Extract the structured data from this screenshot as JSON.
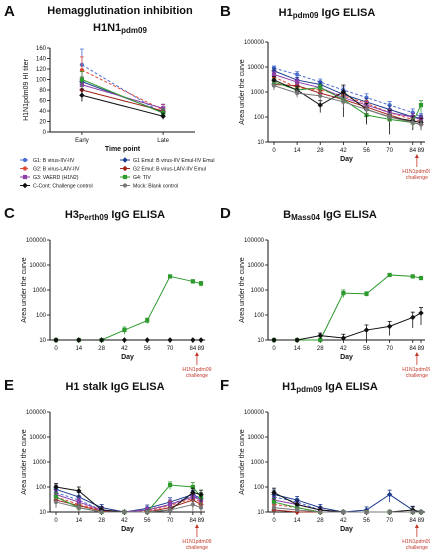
{
  "figure": {
    "panel_letters": [
      "A",
      "B",
      "C",
      "D",
      "E",
      "F"
    ],
    "annotation_line1": "H1N1pdm09",
    "annotation_line2": "challenge"
  },
  "legend": [
    {
      "label": "G1: B virus-IIV-IIV",
      "color": "#4a6fd0",
      "marker": "circle",
      "dash": "3,2"
    },
    {
      "label": "G1 Emul: B virus-IIV Emul-IIV Emul",
      "color": "#1d3c8f",
      "marker": "diamond",
      "dash": ""
    },
    {
      "label": "G2: B virus-LAIV-IIV",
      "color": "#e04a3a",
      "marker": "circle",
      "dash": "3,2"
    },
    {
      "label": "G2 Emul: B virus-LAIV-IIV Emul",
      "color": "#a3231b",
      "marker": "diamond",
      "dash": ""
    },
    {
      "label": "G3: VAERD (H1N2)",
      "color": "#8e3fa8",
      "marker": "square",
      "dash": ""
    },
    {
      "label": "G4: TIV",
      "color": "#2e9a2e",
      "marker": "square",
      "dash": ""
    },
    {
      "label": "C-Cont: Challenge control",
      "color": "#111111",
      "marker": "diamond",
      "dash": ""
    },
    {
      "label": "Mock: Blank control",
      "color": "#777777",
      "marker": "circle",
      "dash": ""
    }
  ],
  "chart_data": [
    {
      "type": "line",
      "title": "Hemagglutination inhibition",
      "subtitle": "H1N1pdm09",
      "xlabel": "Time point",
      "ylabel": "H1N1pdm09 HI titer",
      "categories": [
        "Early",
        "Late"
      ],
      "ylim": [
        0,
        160
      ],
      "yticks": [
        0,
        20,
        40,
        60,
        80,
        100,
        120,
        140,
        160
      ],
      "series": [
        {
          "name": "G1: B virus-IIV-IIV",
          "values": [
            128,
            35
          ],
          "err": [
            30,
            10
          ]
        },
        {
          "name": "G1 Emul: B virus-IIV Emul-IIV Emul",
          "values": [
            96,
            38
          ],
          "err": [
            20,
            8
          ]
        },
        {
          "name": "G2: B virus-LAIV-IIV",
          "values": [
            118,
            42
          ],
          "err": [
            25,
            10
          ]
        },
        {
          "name": "G2 Emul: B virus-LAIV-IIV Emul",
          "values": [
            80,
            40
          ],
          "err": [
            20,
            8
          ]
        },
        {
          "name": "G3: VAERD (H1N2)",
          "values": [
            90,
            45
          ],
          "err": [
            15,
            8
          ]
        },
        {
          "name": "G4: TIV",
          "values": [
            100,
            36
          ],
          "err": [
            15,
            8
          ]
        },
        {
          "name": "C-Cont: Challenge control",
          "values": [
            70,
            30
          ],
          "err": [
            12,
            6
          ]
        }
      ]
    },
    {
      "type": "line",
      "title": "H1",
      "title_sub": "pdm09",
      "title_rest": " IgG ELISA",
      "xlabel": "Day",
      "ylabel": "Area under the curve",
      "x": [
        0,
        14,
        28,
        42,
        56,
        70,
        84,
        89
      ],
      "xticks": [
        0,
        14,
        28,
        42,
        56,
        70,
        84,
        89
      ],
      "ylim": [
        10,
        100000
      ],
      "yscale": "log",
      "yticks": [
        10,
        100,
        1000,
        10000,
        100000
      ],
      "series": [
        {
          "name": "G1: B virus-IIV-IIV",
          "values": [
            9000,
            5000,
            2500,
            1200,
            600,
            300,
            150,
            100
          ],
          "err": [
            2000,
            1500,
            800,
            400,
            250,
            120,
            60,
            40
          ]
        },
        {
          "name": "G1 Emul: B virus-IIV Emul-IIV Emul",
          "values": [
            7000,
            3000,
            2000,
            800,
            400,
            200,
            100,
            90
          ],
          "err": [
            2000,
            800,
            600,
            300,
            150,
            80,
            40,
            30
          ]
        },
        {
          "name": "G2: B virus-LAIV-IIV",
          "values": [
            4000,
            1500,
            1200,
            700,
            350,
            150,
            80,
            70
          ],
          "err": [
            1500,
            500,
            400,
            250,
            120,
            60,
            30,
            25
          ]
        },
        {
          "name": "G2 Emul: B virus-LAIV-IIV Emul",
          "values": [
            2000,
            1800,
            900,
            500,
            250,
            120,
            60,
            50
          ],
          "err": [
            800,
            600,
            300,
            200,
            100,
            50,
            25,
            20
          ]
        },
        {
          "name": "G3: VAERD (H1N2)",
          "values": [
            5000,
            2500,
            1500,
            600,
            300,
            150,
            100,
            80
          ],
          "err": [
            1500,
            800,
            500,
            250,
            120,
            60,
            40,
            30
          ]
        },
        {
          "name": "G4: TIV",
          "values": [
            2500,
            1200,
            1500,
            500,
            120,
            80,
            60,
            300
          ],
          "err": [
            900,
            400,
            500,
            200,
            60,
            40,
            30,
            150
          ]
        },
        {
          "name": "C-Cont: Challenge control",
          "values": [
            3000,
            1200,
            300,
            1000,
            200,
            100,
            70,
            60
          ],
          "err": [
            1200,
            500,
            150,
            900,
            150,
            80,
            40,
            30
          ]
        },
        {
          "name": "Mock: Blank control",
          "values": [
            1800,
            900,
            700,
            400,
            200,
            100,
            60,
            50
          ],
          "err": [
            600,
            300,
            250,
            150,
            80,
            40,
            25,
            20
          ]
        }
      ]
    },
    {
      "type": "line",
      "title": "H3",
      "title_sub": "Perth09",
      "title_rest": " IgG ELISA",
      "xlabel": "Day",
      "ylabel": "Area under the curve",
      "x": [
        0,
        14,
        28,
        42,
        56,
        70,
        84,
        89
      ],
      "xticks": [
        0,
        14,
        28,
        42,
        56,
        70,
        84,
        89
      ],
      "ylim": [
        10,
        100000
      ],
      "yscale": "log",
      "yticks": [
        10,
        100,
        1000,
        10000,
        100000
      ],
      "series": [
        {
          "name": "G4: TIV",
          "values": [
            10,
            10,
            10,
            25,
            60,
            3500,
            2200,
            1800
          ],
          "err": [
            0,
            0,
            0,
            8,
            15,
            500,
            400,
            400
          ]
        },
        {
          "name": "C-Cont: Challenge control",
          "values": [
            10,
            10,
            10,
            10,
            10,
            10,
            10,
            10
          ],
          "err": [
            0,
            0,
            0,
            0,
            0,
            0,
            0,
            0
          ]
        }
      ]
    },
    {
      "type": "line",
      "title": "B",
      "title_sub": "Mass04",
      "title_rest": " IgG ELISA",
      "xlabel": "Day",
      "ylabel": "Area under the curve",
      "x": [
        0,
        14,
        28,
        42,
        56,
        70,
        84,
        89
      ],
      "xticks": [
        0,
        14,
        28,
        42,
        56,
        70,
        84,
        89
      ],
      "ylim": [
        10,
        100000
      ],
      "yscale": "log",
      "yticks": [
        10,
        100,
        1000,
        10000,
        100000
      ],
      "series": [
        {
          "name": "G4: TIV",
          "values": [
            10,
            10,
            10,
            750,
            700,
            4000,
            3500,
            3000
          ],
          "err": [
            0,
            0,
            0,
            250,
            150,
            600,
            500,
            400
          ]
        },
        {
          "name": "C-Cont: Challenge control",
          "values": [
            10,
            10,
            15,
            12,
            25,
            35,
            80,
            120
          ],
          "err": [
            0,
            0,
            4,
            5,
            15,
            20,
            50,
            80
          ]
        }
      ]
    },
    {
      "type": "line",
      "title": "H1 stalk IgG ELISA",
      "xlabel": "Day",
      "ylabel": "Area under the curve",
      "x": [
        0,
        14,
        28,
        42,
        56,
        70,
        84,
        89
      ],
      "xticks": [
        0,
        14,
        28,
        42,
        56,
        70,
        84,
        89
      ],
      "ylim": [
        10,
        100000
      ],
      "yscale": "log",
      "yticks": [
        10,
        100,
        1000,
        10000,
        100000
      ],
      "series": [
        {
          "name": "G1: B virus-IIV-IIV",
          "values": [
            60,
            30,
            12,
            10,
            12,
            20,
            45,
            30
          ],
          "err": [
            30,
            15,
            4,
            0,
            4,
            10,
            25,
            15
          ]
        },
        {
          "name": "G1 Emul: B virus-IIV Emul-IIV Emul",
          "values": [
            80,
            40,
            15,
            10,
            14,
            25,
            50,
            35
          ],
          "err": [
            40,
            20,
            5,
            0,
            5,
            12,
            25,
            18
          ]
        },
        {
          "name": "G2: B virus-LAIV-IIV",
          "values": [
            40,
            20,
            12,
            10,
            11,
            18,
            35,
            25
          ],
          "err": [
            20,
            10,
            4,
            0,
            3,
            8,
            20,
            12
          ]
        },
        {
          "name": "G2 Emul: B virus-LAIV-IIV Emul",
          "values": [
            30,
            18,
            11,
            10,
            10,
            15,
            30,
            20
          ],
          "err": [
            15,
            8,
            3,
            0,
            0,
            6,
            15,
            10
          ]
        },
        {
          "name": "G3: VAERD (H1N2)",
          "values": [
            50,
            25,
            12,
            10,
            12,
            20,
            40,
            30
          ],
          "err": [
            25,
            12,
            4,
            0,
            4,
            10,
            20,
            15
          ]
        },
        {
          "name": "G4: TIV",
          "values": [
            40,
            15,
            10,
            10,
            10,
            120,
            100,
            40
          ],
          "err": [
            20,
            6,
            0,
            0,
            0,
            40,
            50,
            20
          ]
        },
        {
          "name": "C-Cont: Challenge control",
          "values": [
            100,
            70,
            12,
            10,
            10,
            12,
            60,
            50
          ],
          "err": [
            40,
            30,
            4,
            0,
            0,
            4,
            30,
            25
          ]
        },
        {
          "name": "Mock: Blank control",
          "values": [
            25,
            15,
            10,
            10,
            10,
            12,
            20,
            15
          ],
          "err": [
            10,
            6,
            0,
            0,
            0,
            4,
            10,
            6
          ]
        }
      ]
    },
    {
      "type": "line",
      "title": "H1",
      "title_sub": "pdm09",
      "title_rest": " IgA ELISA",
      "xlabel": "Day",
      "ylabel": "Area under the curve",
      "x": [
        0,
        14,
        28,
        42,
        56,
        70,
        84,
        89
      ],
      "xticks": [
        0,
        14,
        28,
        42,
        56,
        70,
        84,
        89
      ],
      "ylim": [
        10,
        100000
      ],
      "yscale": "log",
      "yticks": [
        10,
        100,
        1000,
        10000,
        100000
      ],
      "series": [
        {
          "name": "G1: B virus-IIV-IIV",
          "values": [
            40,
            25,
            12,
            10,
            10,
            10,
            10,
            10
          ],
          "err": [
            20,
            10,
            4,
            0,
            0,
            0,
            0,
            0
          ]
        },
        {
          "name": "G1 Emul: B virus-IIV Emul-IIV Emul",
          "values": [
            50,
            30,
            15,
            10,
            12,
            50,
            12,
            10
          ],
          "err": [
            25,
            12,
            5,
            0,
            4,
            25,
            5,
            0
          ]
        },
        {
          "name": "G2: B virus-LAIV-IIV",
          "values": [
            20,
            15,
            10,
            10,
            10,
            10,
            10,
            10
          ],
          "err": [
            8,
            6,
            0,
            0,
            0,
            0,
            0,
            0
          ]
        },
        {
          "name": "G2 Emul: B virus-LAIV-IIV Emul",
          "values": [
            12,
            10,
            10,
            10,
            10,
            10,
            10,
            10
          ],
          "err": [
            4,
            0,
            0,
            0,
            0,
            0,
            0,
            0
          ]
        },
        {
          "name": "G3: VAERD (H1N2)",
          "values": [
            30,
            20,
            12,
            10,
            10,
            10,
            10,
            10
          ],
          "err": [
            12,
            8,
            4,
            0,
            0,
            0,
            0,
            0
          ]
        },
        {
          "name": "G4: TIV",
          "values": [
            25,
            15,
            10,
            10,
            10,
            10,
            10,
            10
          ],
          "err": [
            10,
            6,
            0,
            0,
            0,
            0,
            0,
            0
          ]
        },
        {
          "name": "C-Cont: Challenge control",
          "values": [
            60,
            20,
            12,
            10,
            10,
            10,
            12,
            10
          ],
          "err": [
            30,
            8,
            4,
            0,
            0,
            0,
            4,
            0
          ]
        },
        {
          "name": "Mock: Blank control",
          "values": [
            15,
            12,
            10,
            10,
            10,
            10,
            10,
            10
          ],
          "err": [
            6,
            4,
            0,
            0,
            0,
            0,
            0,
            0
          ]
        }
      ]
    }
  ]
}
